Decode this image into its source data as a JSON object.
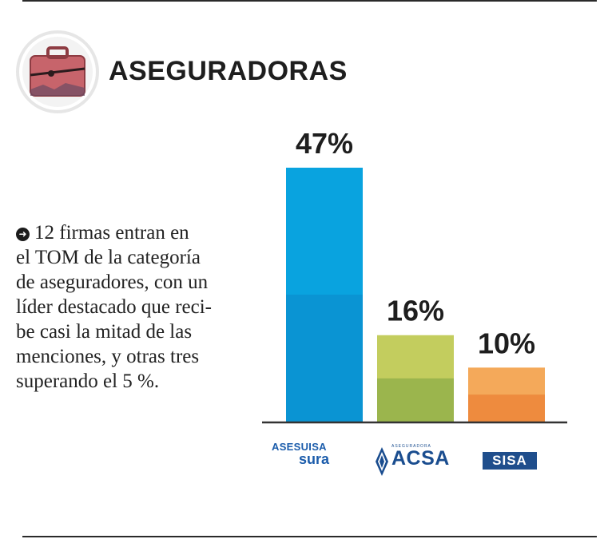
{
  "header": {
    "title": "ASEGURADORAS",
    "icon": "briefcase-icon"
  },
  "description": {
    "lines": [
      "12 firmas entran en",
      "el TOM de la categoría",
      "de aseguradores, con un",
      "líder destacado que reci-",
      "be casi la mitad de las",
      "menciones, y otras tres",
      "superando el 5 %."
    ]
  },
  "chart_data": {
    "type": "bar",
    "categories": [
      "ASESUISA sura",
      "ACSA",
      "SISA"
    ],
    "values": [
      47,
      16,
      10
    ],
    "value_labels": [
      "47%",
      "16%",
      "10%"
    ],
    "title": "",
    "xlabel": "",
    "ylabel": "",
    "ylim": [
      0,
      47
    ],
    "grid": false,
    "colors": {
      "bar_top": [
        "#09a3df",
        "#c3cd5e",
        "#f4a95a"
      ],
      "bar_bottom": [
        "#0a94d3",
        "#9bb54d",
        "#ee8b3e"
      ],
      "baseline": "#333333"
    }
  },
  "logos": {
    "asesuisa": {
      "line1": "ASESUISA",
      "line2": "sura"
    },
    "acsa": {
      "small": "ASEGURADORA",
      "big": "ACSA"
    },
    "sisa": {
      "box": "SISA"
    }
  }
}
